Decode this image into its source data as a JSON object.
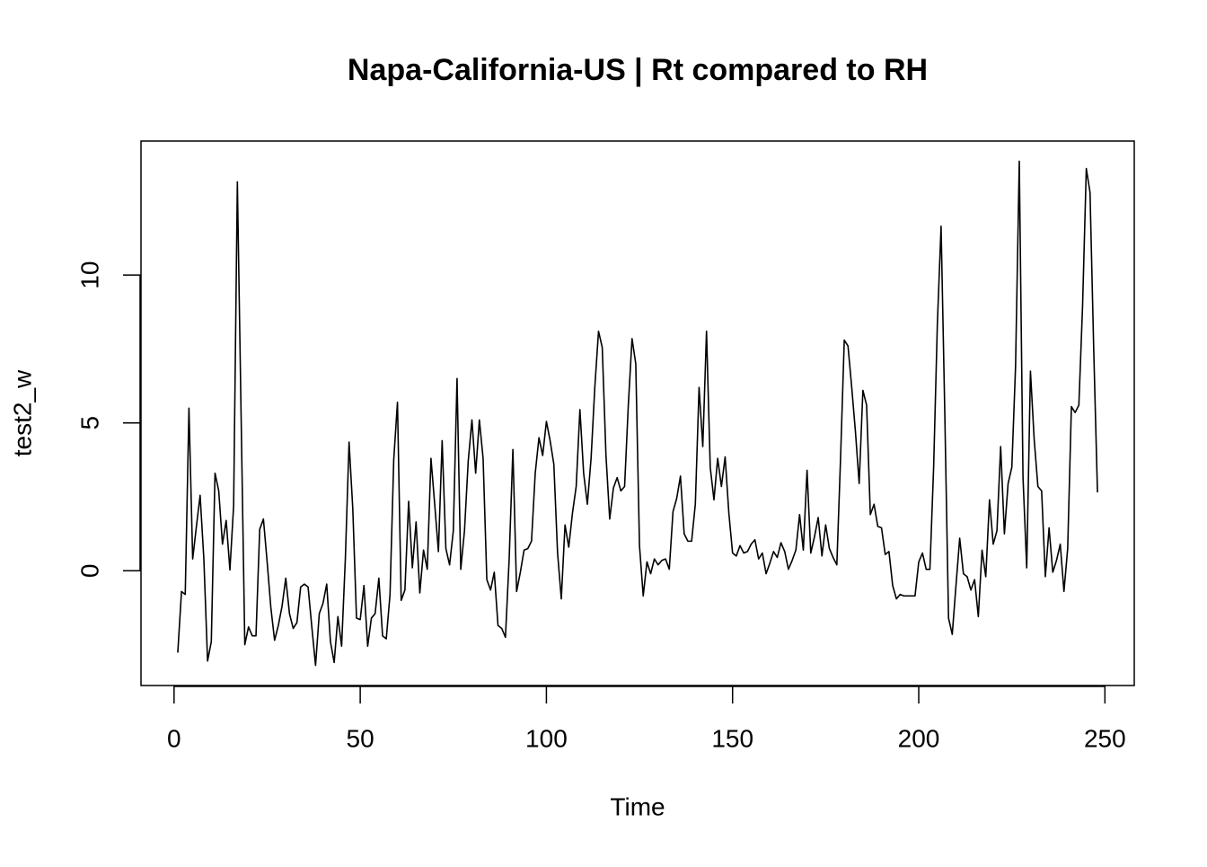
{
  "chart_data": {
    "type": "line",
    "title": "Napa-California-US | Rt compared to RH",
    "x_label": "Time",
    "y_label": "test2_w",
    "x": [
      1,
      2,
      3,
      4,
      5,
      6,
      7,
      8,
      9,
      10,
      11,
      12,
      13,
      14,
      15,
      16,
      17,
      18,
      19,
      20,
      21,
      22,
      23,
      24,
      25,
      26,
      27,
      28,
      29,
      30,
      31,
      32,
      33,
      34,
      35,
      36,
      37,
      38,
      39,
      40,
      41,
      42,
      43,
      44,
      45,
      46,
      47,
      48,
      49,
      50,
      51,
      52,
      53,
      54,
      55,
      56,
      57,
      58,
      59,
      60,
      61,
      62,
      63,
      64,
      65,
      66,
      67,
      68,
      69,
      70,
      71,
      72,
      73,
      74,
      75,
      76,
      77,
      78,
      79,
      80,
      81,
      82,
      83,
      84,
      85,
      86,
      87,
      88,
      89,
      90,
      91,
      92,
      93,
      94,
      95,
      96,
      97,
      98,
      99,
      100,
      101,
      102,
      103,
      104,
      105,
      106,
      107,
      108,
      109,
      110,
      111,
      112,
      113,
      114,
      115,
      116,
      117,
      118,
      119,
      120,
      121,
      122,
      123,
      124,
      125,
      126,
      127,
      128,
      129,
      130,
      131,
      132,
      133,
      134,
      135,
      136,
      137,
      138,
      139,
      140,
      141,
      142,
      143,
      144,
      145,
      146,
      147,
      148,
      149,
      150,
      151,
      152,
      153,
      154,
      155,
      156,
      157,
      158,
      159,
      160,
      161,
      162,
      163,
      164,
      165,
      166,
      167,
      168,
      169,
      170,
      171,
      172,
      173,
      174,
      175,
      176,
      177,
      178,
      179,
      180,
      181,
      182,
      183,
      184,
      185,
      186,
      187,
      188,
      189,
      190,
      191,
      192,
      193,
      194,
      195,
      196,
      197,
      198,
      199,
      200,
      201,
      202,
      203,
      204,
      205,
      206,
      207,
      208,
      209,
      210,
      211,
      212,
      213,
      214,
      215,
      216,
      217,
      218,
      219,
      220,
      221,
      222,
      223,
      224,
      225,
      226,
      227,
      228,
      229,
      230,
      231,
      232,
      233,
      234,
      235,
      236,
      237,
      238,
      239,
      240,
      241,
      242,
      243,
      244,
      245,
      246,
      247,
      248
    ],
    "series": [
      {
        "name": "test2_w",
        "color": "#000000",
        "values": [
          -2.77,
          -0.7,
          -0.8,
          5.5,
          0.4,
          1.5,
          2.55,
          0.4,
          -3.05,
          -2.4,
          3.3,
          2.7,
          0.9,
          1.7,
          0.03,
          2.2,
          13.15,
          5.3,
          -2.5,
          -1.9,
          -2.2,
          -2.2,
          1.4,
          1.75,
          0.3,
          -1.25,
          -2.35,
          -1.85,
          -1.2,
          -0.25,
          -1.45,
          -1.95,
          -1.75,
          -0.55,
          -0.45,
          -0.55,
          -1.9,
          -3.2,
          -1.45,
          -1.1,
          -0.45,
          -2.4,
          -3.1,
          -1.55,
          -2.55,
          0.4,
          4.35,
          2.1,
          -1.6,
          -1.65,
          -0.5,
          -2.55,
          -1.6,
          -1.45,
          -0.25,
          -2.2,
          -2.3,
          -0.8,
          3.75,
          5.7,
          -1.0,
          -0.65,
          2.35,
          0.1,
          1.65,
          -0.75,
          0.7,
          0.05,
          3.8,
          2.25,
          0.65,
          4.4,
          0.75,
          0.2,
          1.35,
          6.5,
          0.05,
          1.35,
          3.7,
          5.1,
          3.3,
          5.1,
          3.8,
          -0.3,
          -0.65,
          -0.05,
          -1.85,
          -1.95,
          -2.25,
          0.4,
          4.1,
          -0.7,
          -0.05,
          0.7,
          0.75,
          1.0,
          3.3,
          4.5,
          3.9,
          5.05,
          4.4,
          3.6,
          0.6,
          -0.95,
          1.55,
          0.8,
          1.95,
          2.85,
          5.45,
          3.3,
          2.25,
          3.8,
          6.2,
          8.1,
          7.55,
          3.9,
          1.75,
          2.8,
          3.15,
          2.7,
          2.85,
          5.6,
          7.85,
          7.0,
          0.85,
          -0.85,
          0.3,
          -0.1,
          0.4,
          0.2,
          0.35,
          0.4,
          0.05,
          2.0,
          2.45,
          3.2,
          1.25,
          1.0,
          1.0,
          2.25,
          6.2,
          4.2,
          8.1,
          3.5,
          2.4,
          3.8,
          2.85,
          3.85,
          1.95,
          0.6,
          0.5,
          0.85,
          0.6,
          0.65,
          0.9,
          1.05,
          0.4,
          0.6,
          -0.1,
          0.25,
          0.65,
          0.45,
          0.95,
          0.65,
          0.05,
          0.35,
          0.7,
          1.9,
          0.7,
          3.4,
          0.6,
          1.15,
          1.8,
          0.5,
          1.55,
          0.75,
          0.45,
          0.2,
          3.8,
          7.8,
          7.6,
          6.2,
          4.7,
          2.95,
          6.1,
          5.6,
          1.9,
          2.25,
          1.5,
          1.45,
          0.55,
          0.65,
          -0.5,
          -0.95,
          -0.8,
          -0.85,
          -0.85,
          -0.85,
          -0.85,
          0.3,
          0.6,
          0.05,
          0.05,
          3.5,
          8.35,
          11.65,
          5.3,
          -1.6,
          -2.15,
          -0.5,
          1.1,
          -0.1,
          -0.2,
          -0.65,
          -0.3,
          -1.55,
          0.7,
          -0.2,
          2.4,
          0.9,
          1.35,
          4.2,
          1.25,
          2.95,
          3.5,
          6.9,
          13.85,
          3.15,
          0.1,
          6.75,
          4.45,
          2.85,
          2.7,
          -0.2,
          1.45,
          -0.05,
          0.35,
          0.9,
          -0.7,
          0.75,
          5.55,
          5.35,
          5.6,
          8.95,
          13.6,
          12.8,
          7.45,
          2.65
        ]
      }
    ],
    "xlim": [
      -8.88,
      257.88
    ],
    "xticks": [
      0,
      50,
      100,
      150,
      200,
      250
    ],
    "ylim": [
      -3.88,
      14.53
    ],
    "yticks": [
      0,
      5,
      10
    ],
    "grid": false
  }
}
